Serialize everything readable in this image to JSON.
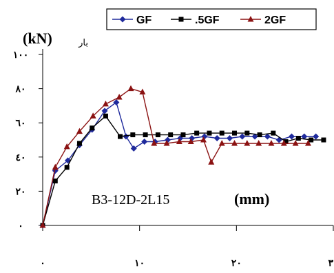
{
  "chart_data": {
    "type": "line",
    "ylabel_word": "بار",
    "ylabel_unit": "(kN)",
    "annotation_specimen": "B3-12D-2L15",
    "annotation_unit": "(mm)",
    "xlim": [
      0,
      30
    ],
    "ylim": [
      0,
      100
    ],
    "x_ticks": [
      0,
      10,
      20,
      30
    ],
    "x_tick_labels": [
      "٠",
      "١٠",
      "٢٠",
      "٣٠"
    ],
    "y_ticks": [
      0,
      20,
      40,
      60,
      80,
      100
    ],
    "y_tick_labels": [
      "٠",
      "٢٠",
      "٤٠",
      "٦٠",
      "٨٠",
      "١٠٠"
    ],
    "legend_position": "top-right",
    "series": [
      {
        "name": "GF",
        "color": "#1f2a9c",
        "marker": "diamond",
        "points": [
          [
            0,
            0
          ],
          [
            1.3,
            32
          ],
          [
            2.6,
            38
          ],
          [
            3.8,
            47
          ],
          [
            5.1,
            56
          ],
          [
            6.4,
            67
          ],
          [
            7.6,
            72
          ],
          [
            8.6,
            52
          ],
          [
            9.4,
            45
          ],
          [
            10.5,
            49
          ],
          [
            11.6,
            49
          ],
          [
            12.9,
            50
          ],
          [
            14.2,
            51
          ],
          [
            15.4,
            51
          ],
          [
            16.7,
            52
          ],
          [
            18,
            51
          ],
          [
            19.3,
            51
          ],
          [
            20.6,
            52
          ],
          [
            21.9,
            52
          ],
          [
            23.2,
            52
          ],
          [
            24.4,
            50
          ],
          [
            25.7,
            52
          ],
          [
            27,
            52
          ],
          [
            28.2,
            52
          ]
        ]
      },
      {
        "name": ".5GF",
        "color": "#000000",
        "marker": "square",
        "points": [
          [
            0,
            0
          ],
          [
            1.3,
            26
          ],
          [
            2.5,
            34
          ],
          [
            3.8,
            48
          ],
          [
            5.1,
            57
          ],
          [
            6.5,
            64
          ],
          [
            8,
            52
          ],
          [
            9.3,
            53
          ],
          [
            10.6,
            53
          ],
          [
            11.9,
            53
          ],
          [
            13.2,
            53
          ],
          [
            14.5,
            53
          ],
          [
            15.9,
            54
          ],
          [
            17.2,
            54
          ],
          [
            18.5,
            54
          ],
          [
            19.8,
            54
          ],
          [
            21.1,
            54
          ],
          [
            22.4,
            53
          ],
          [
            23.8,
            54
          ],
          [
            25.1,
            49
          ],
          [
            26.4,
            51
          ],
          [
            27.7,
            50
          ],
          [
            29,
            50
          ]
        ]
      },
      {
        "name": "2GF",
        "color": "#8b1212",
        "marker": "triangle",
        "points": [
          [
            0,
            0
          ],
          [
            1.3,
            34
          ],
          [
            2.5,
            46
          ],
          [
            3.8,
            55
          ],
          [
            5.2,
            64
          ],
          [
            6.5,
            71
          ],
          [
            7.9,
            75
          ],
          [
            9.1,
            80
          ],
          [
            10.3,
            78
          ],
          [
            11.5,
            48
          ],
          [
            12.8,
            48
          ],
          [
            14.1,
            49
          ],
          [
            15.3,
            49
          ],
          [
            16.6,
            50
          ],
          [
            17.4,
            37
          ],
          [
            18.5,
            48
          ],
          [
            19.8,
            48
          ],
          [
            21.1,
            48
          ],
          [
            22.3,
            48
          ],
          [
            23.6,
            48
          ],
          [
            24.9,
            48
          ],
          [
            26.1,
            48
          ],
          [
            27.4,
            48
          ]
        ]
      }
    ]
  }
}
